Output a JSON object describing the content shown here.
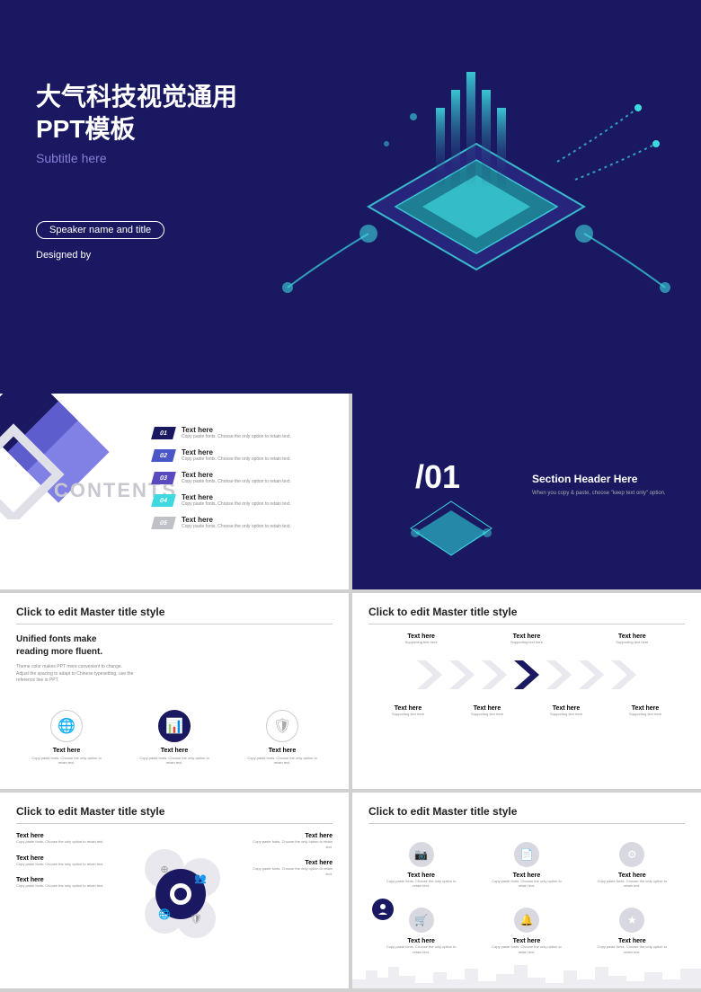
{
  "colors": {
    "primary": "#1a1860",
    "accent_purple": "#8a7fd8",
    "cyan": "#3dd8e0",
    "teal": "#2bb8c8",
    "gray_text": "#888888",
    "light_gray": "#c8c8d0",
    "shape_gray": "#d8d8e0",
    "white": "#ffffff"
  },
  "slide1": {
    "title_line1": "大气科技视觉通用",
    "title_line2": "PPT模板",
    "subtitle": "Subtitle here",
    "speaker": "Speaker name and title",
    "designed": "Designed by"
  },
  "slide2": {
    "label": "CONTENTS",
    "items": [
      {
        "num": "01",
        "title": "Text here",
        "sub": "Copy paste fonts. Choose the only option to retain text.",
        "color": "#1a1860"
      },
      {
        "num": "02",
        "title": "Text here",
        "sub": "Copy paste fonts. Choose the only option to retain text.",
        "color": "#4a55c8"
      },
      {
        "num": "03",
        "title": "Text here",
        "sub": "Copy paste fonts. Choose the only option to retain text.",
        "color": "#5a4ac0"
      },
      {
        "num": "04",
        "title": "Text here",
        "sub": "Copy paste fonts. Choose the only option to retain text.",
        "color": "#3dd8e0"
      },
      {
        "num": "05",
        "title": "Text here",
        "sub": "Copy paste fonts. Choose the only option to retain text.",
        "color": "#c0c0c8"
      }
    ],
    "decor_colors": [
      "#1a1860",
      "#6a6ae0",
      "#e8e8f0"
    ]
  },
  "slide3": {
    "num": "/01",
    "header": "Section Header Here",
    "sub": "When you copy & paste, choose \"keep text only\" option."
  },
  "slide4": {
    "title": "Click to edit Master title style",
    "sub1_line1": "Unified fonts make",
    "sub1_line2": "reading more fluent.",
    "sub2_line1": "Theme color makes PPT more convenient to change.",
    "sub2_line2": "Adjust the spacing to adapt to Chinese typesetting, use the",
    "sub2_line3": "reference line in PPT.",
    "icons": [
      {
        "name": "globe-icon",
        "title": "Text here",
        "sub": "Copy paste fonts. Choose the only option to retain text.",
        "active": false
      },
      {
        "name": "chart-icon",
        "title": "Text here",
        "sub": "Copy paste fonts. Choose the only option to retain text.",
        "active": true
      },
      {
        "name": "shield-icon",
        "title": "Text here",
        "sub": "Copy paste fonts. Choose the only option to retain text.",
        "active": false
      }
    ]
  },
  "slide5": {
    "title": "Click to edit Master title style",
    "top_items": [
      {
        "title": "Text here",
        "sub": "Supporting text here"
      },
      {
        "title": "Text here",
        "sub": "Supporting text here"
      },
      {
        "title": "Text here",
        "sub": "Supporting text here"
      }
    ],
    "arrow_colors": [
      "#e8e8ee",
      "#e8e8ee",
      "#e8e8ee",
      "#1a1860",
      "#e8e8ee",
      "#e8e8ee",
      "#e8e8ee"
    ],
    "bot_items": [
      {
        "title": "Text here",
        "sub": "Supporting text here"
      },
      {
        "title": "Text here",
        "sub": "Supporting text here"
      },
      {
        "title": "Text here",
        "sub": "Supporting text here"
      },
      {
        "title": "Text here",
        "sub": "Supporting text here"
      }
    ]
  },
  "slide6": {
    "title": "Click to edit Master title style",
    "left_blocks": [
      {
        "title": "Text here",
        "sub": "Copy paste fonts. Choose the only option to retain text."
      },
      {
        "title": "Text here",
        "sub": "Copy paste fonts. Choose the only option to retain text."
      },
      {
        "title": "Text here",
        "sub": "Copy paste fonts. Choose the only option to retain text."
      }
    ],
    "right_blocks": [
      {
        "title": "Text here",
        "sub": "Copy paste fonts. Choose the only option to retain text."
      },
      {
        "title": "Text here",
        "sub": "Copy paste fonts. Choose the only option to retain text."
      }
    ]
  },
  "slide7": {
    "title": "Click to edit Master title style",
    "lead": {
      "title": "Text here",
      "sub": "Copy paste fonts. Choose the only option to retain text."
    },
    "top_items": [
      {
        "icon": "camera-icon",
        "title": "Text here",
        "sub": "Copy paste fonts. Choose the only option to retain text."
      },
      {
        "icon": "doc-icon",
        "title": "Text here",
        "sub": "Copy paste fonts. Choose the only option to retain text."
      },
      {
        "icon": "gear-icon",
        "title": "Text here",
        "sub": "Copy paste fonts. Choose the only option to retain text."
      }
    ],
    "bot_items": [
      {
        "icon": "cart-icon",
        "title": "Text here",
        "sub": "Copy paste fonts. Choose the only option to retain text."
      },
      {
        "icon": "bell-icon",
        "title": "Text here",
        "sub": "Copy paste fonts. Choose the only option to retain text."
      },
      {
        "icon": "star-icon",
        "title": "Text here",
        "sub": "Copy paste fonts. Choose the only option to retain text."
      }
    ]
  }
}
